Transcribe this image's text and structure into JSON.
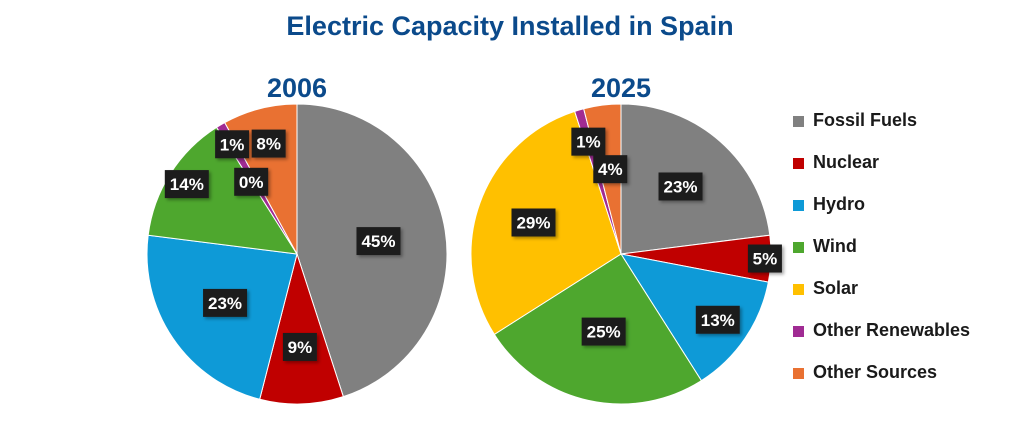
{
  "chart_data": {
    "type": "pie",
    "title": "Electric Capacity Installed in Spain",
    "categories": [
      "Fossil Fuels",
      "Nuclear",
      "Hydro",
      "Wind",
      "Solar",
      "Other Renewables",
      "Other Sources"
    ],
    "colors": [
      "#808080",
      "#C00000",
      "#0E9AD7",
      "#4EA72E",
      "#FFC000",
      "#A02B93",
      "#E97132"
    ],
    "legend_position": "right",
    "series": [
      {
        "name": "2006",
        "values": [
          45,
          9,
          23,
          14,
          0,
          1,
          8
        ],
        "labels": [
          "45%",
          "9%",
          "23%",
          "14%",
          "0%",
          "1%",
          "8%"
        ]
      },
      {
        "name": "2025",
        "values": [
          23,
          5,
          13,
          25,
          29,
          1,
          4
        ],
        "labels": [
          "23%",
          "5%",
          "13%",
          "25%",
          "29%",
          "1%",
          "4%"
        ]
      }
    ]
  },
  "theme": {
    "title_color": "#0B4A8B",
    "label_bg": "#1F1F1F",
    "label_text": "#FFFFFF",
    "legend_text": "#1A1A1A"
  }
}
